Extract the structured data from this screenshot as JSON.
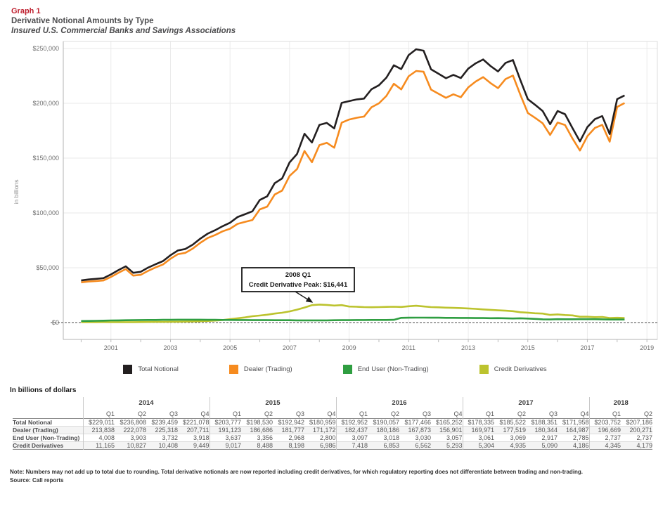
{
  "header": {
    "graph_label": "Graph 1",
    "title": "Derivative Notional Amounts by Type",
    "subtitle": "Insured U.S. Commercial Banks and Savings Associations"
  },
  "chart_data": {
    "type": "line",
    "ylabel": "in billions",
    "ylim": [
      0,
      260000
    ],
    "yticks": [
      0,
      50000,
      100000,
      150000,
      200000,
      250000
    ],
    "ytick_labels": [
      "$0",
      "$50,000",
      "$100,000",
      "$150,000",
      "$200,000",
      "$250,000"
    ],
    "xticks": [
      2001,
      2003,
      2005,
      2007,
      2009,
      2011,
      2013,
      2015,
      2017,
      2019
    ],
    "x_domain": [
      1999.4,
      2019.35
    ],
    "x_start": 2000.0,
    "x_step": 0.25,
    "grid": true,
    "legend_position": "bottom",
    "annotation": {
      "title": "2008 Q1",
      "text": "Credit Derivative Peak: $16,441",
      "target_quarter": "2008 Q1",
      "target_value": 16441
    },
    "series": [
      {
        "name": "Total Notional",
        "color": "#231f20",
        "values": [
          38400,
          39300,
          39900,
          40500,
          43900,
          47800,
          51300,
          45400,
          46300,
          50100,
          53200,
          56100,
          61400,
          65800,
          67100,
          71100,
          76500,
          81100,
          84200,
          87900,
          91100,
          96200,
          98800,
          101500,
          111800,
          115200,
          127100,
          131500,
          146100,
          153800,
          172200,
          164200,
          180300,
          182100,
          177100,
          200400,
          202000,
          203500,
          204300,
          212800,
          216500,
          223400,
          234700,
          231200,
          244000,
          249300,
          248000,
          231000,
          227000,
          222900,
          225900,
          223000,
          231600,
          236500,
          240000,
          234000,
          229011,
          236808,
          239459,
          221078,
          203777,
          198530,
          192942,
          180959,
          192952,
          190057,
          177466,
          165252,
          178335,
          185522,
          188351,
          171958,
          203752,
          207186
        ]
      },
      {
        "name": "Dealer (Trading)",
        "color": "#f68b1f",
        "values": [
          36650,
          37420,
          37900,
          38370,
          41600,
          45410,
          48800,
          42800,
          43550,
          47200,
          50250,
          53000,
          58200,
          62400,
          63600,
          67500,
          72700,
          77100,
          79900,
          83200,
          85600,
          90000,
          91800,
          93500,
          103200,
          105800,
          116800,
          120400,
          133800,
          140000,
          156500,
          146300,
          161859,
          164000,
          159500,
          182300,
          185200,
          186800,
          187900,
          196400,
          200000,
          206700,
          217800,
          212700,
          224700,
          229500,
          228800,
          212500,
          208700,
          205000,
          208200,
          205600,
          214500,
          219900,
          223900,
          218400,
          213838,
          222078,
          225318,
          207711,
          191123,
          186686,
          181777,
          171172,
          182437,
          180186,
          167873,
          156901,
          169971,
          177519,
          180344,
          164987,
          196669,
          200271
        ]
      },
      {
        "name": "End User (Non-Trading)",
        "color": "#2f9e41",
        "values": [
          1400,
          1500,
          1600,
          1700,
          1900,
          2000,
          2100,
          2200,
          2300,
          2400,
          2400,
          2500,
          2500,
          2600,
          2600,
          2600,
          2600,
          2500,
          2500,
          2400,
          2400,
          2300,
          2300,
          2200,
          2200,
          2200,
          2100,
          2100,
          2100,
          2000,
          2000,
          2000,
          2000,
          2000,
          2100,
          2200,
          2200,
          2300,
          2300,
          2400,
          2400,
          2400,
          2500,
          4300,
          4400,
          4500,
          4500,
          4400,
          4400,
          4300,
          4300,
          4200,
          4200,
          4100,
          4100,
          4000,
          4008,
          3903,
          3732,
          3918,
          3637,
          3356,
          2968,
          2800,
          3097,
          3018,
          3030,
          3057,
          3061,
          3069,
          2917,
          2785,
          2737,
          2737
        ]
      },
      {
        "name": "Credit Derivatives",
        "color": "#bcc32e",
        "values": [
          350,
          380,
          400,
          430,
          400,
          390,
          400,
          400,
          450,
          500,
          550,
          600,
          700,
          800,
          900,
          1000,
          1200,
          1500,
          1800,
          2300,
          3100,
          3900,
          4700,
          5800,
          6400,
          7200,
          8200,
          9000,
          10200,
          11800,
          13700,
          15900,
          16441,
          16100,
          15500,
          15900,
          14600,
          14400,
          14100,
          14000,
          14100,
          14300,
          14400,
          14200,
          14900,
          15300,
          14700,
          14100,
          13900,
          13600,
          13400,
          13200,
          12900,
          12500,
          12000,
          11600,
          11165,
          10827,
          10408,
          9449,
          9017,
          8488,
          8198,
          6986,
          7418,
          6853,
          6562,
          5293,
          5304,
          4935,
          5090,
          4186,
          4345,
          4179
        ]
      }
    ]
  },
  "table": {
    "caption": "In billions of dollars",
    "year_groups": [
      {
        "label": "2014",
        "cols": 4
      },
      {
        "label": "2015",
        "cols": 4
      },
      {
        "label": "2016",
        "cols": 4
      },
      {
        "label": "2017",
        "cols": 4
      },
      {
        "label": "2018",
        "cols": 2
      }
    ],
    "quarter_headers": [
      "Q1",
      "Q2",
      "Q3",
      "Q4",
      "Q1",
      "Q2",
      "Q3",
      "Q4",
      "Q1",
      "Q2",
      "Q3",
      "Q4",
      "Q1",
      "Q2",
      "Q3",
      "Q4",
      "Q1",
      "Q2"
    ],
    "rows": [
      {
        "label": "Total Notional",
        "values": [
          "$229,011",
          "$236,808",
          "$239,459",
          "$221,078",
          "$203,777",
          "$198,530",
          "$192,942",
          "$180,959",
          "$192,952",
          "$190,057",
          "$177,466",
          "$165,252",
          "$178,335",
          "$185,522",
          "$188,351",
          "$171,958",
          "$203,752",
          "$207,186"
        ]
      },
      {
        "label": "Dealer (Trading)",
        "values": [
          "213,838",
          "222,078",
          "225,318",
          "207,711",
          "191,123",
          "186,686",
          "181,777",
          "171,172",
          "182,437",
          "180,186",
          "167,873",
          "156,901",
          "169,971",
          "177,519",
          "180,344",
          "164,987",
          "196,669",
          "200,271"
        ]
      },
      {
        "label": "End User (Non-Trading)",
        "values": [
          "4,008",
          "3,903",
          "3,732",
          "3,918",
          "3,637",
          "3,356",
          "2,968",
          "2,800",
          "3,097",
          "3,018",
          "3,030",
          "3,057",
          "3,061",
          "3,069",
          "2,917",
          "2,785",
          "2,737",
          "2,737"
        ]
      },
      {
        "label": "Credit Derivatives",
        "values": [
          "11,165",
          "10,827",
          "10,408",
          "9,449",
          "9,017",
          "8,488",
          "8,198",
          "6,986",
          "7,418",
          "6,853",
          "6,562",
          "5,293",
          "5,304",
          "4,935",
          "5,090",
          "4,186",
          "4,345",
          "4,179"
        ]
      }
    ]
  },
  "footer": {
    "note": "Note: Numbers may not add up to total due to rounding. Total derivative notionals are now reported including credit derivatives, for which regulatory reporting does not differentiate between trading and non-trading.",
    "source": "Source: Call reports"
  }
}
